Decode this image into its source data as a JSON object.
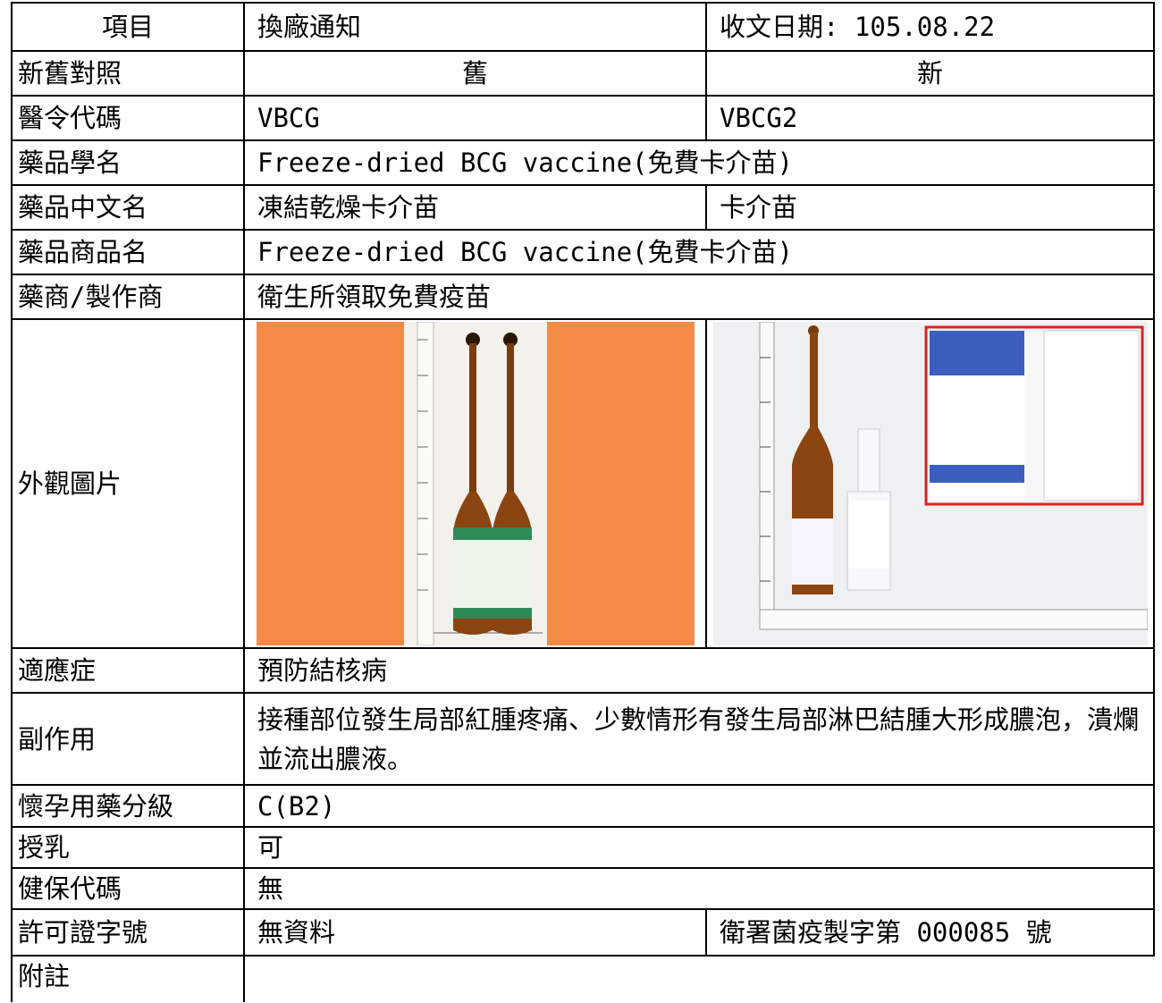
{
  "table": {
    "rows": [
      [
        "項目",
        "換廠通知",
        "收文日期: 105.08.22"
      ],
      [
        "新舊對照",
        "舊",
        "新"
      ],
      [
        "醫令代碼",
        "VBCG",
        "VBCG2"
      ],
      [
        "藥品學名",
        "Freeze-dried BCG vaccine(免費卡介苗)"
      ],
      [
        "藥品中文名",
        "凍結乾燥卡介苗",
        "卡介苗"
      ],
      [
        "藥品商品名",
        "Freeze-dried BCG vaccine(免費卡介苗)"
      ],
      [
        "藥商/製作商",
        "衛生所領取免費疫苗"
      ],
      [
        "外觀圖片"
      ],
      [
        "適應症",
        "預防結核病"
      ],
      [
        "副作用",
        "接種部位發生局部紅腫疼痛、少數情形有發生局部淋巴結腫大形成膿泡，潰爛並流出膿液。"
      ],
      [
        "懷孕用藥分級",
        "C(B2)"
      ],
      [
        "授乳",
        "可"
      ],
      [
        "健保代碼",
        "無"
      ],
      [
        "許可證字號",
        "無資料",
        "衛署菌疫製字第 000085 號"
      ],
      [
        "附註"
      ]
    ]
  }
}
